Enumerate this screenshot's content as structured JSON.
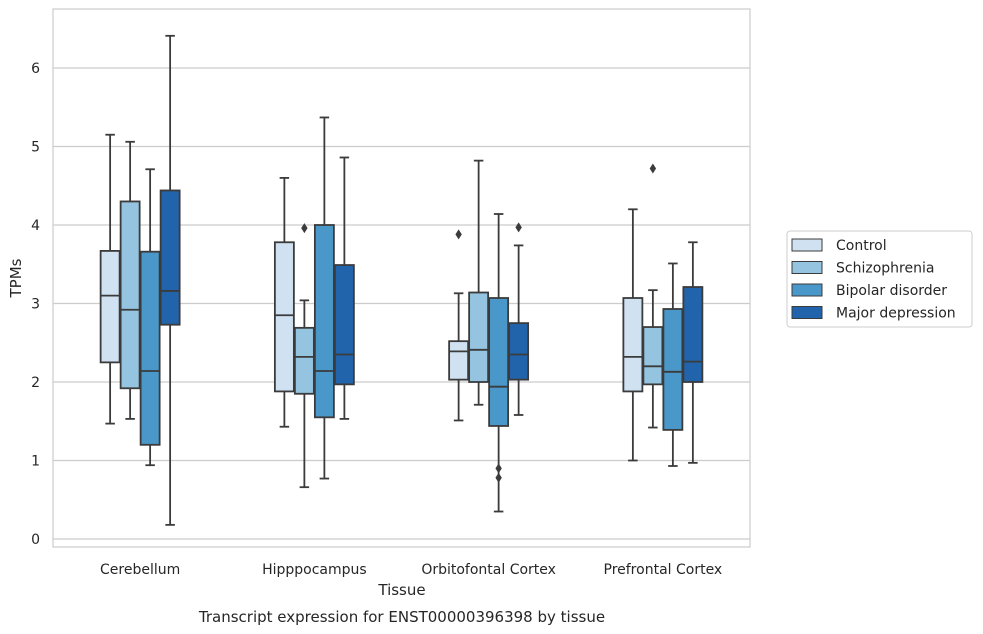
{
  "chart_data": {
    "type": "box",
    "title": "",
    "caption": "Transcript expression for ENST00000396398 by tissue",
    "xlabel": "Tissue",
    "ylabel": "TPMs",
    "ylim": [
      -0.1,
      6.75
    ],
    "yticks": [
      0,
      1,
      2,
      3,
      4,
      5,
      6
    ],
    "grid": "horizontal",
    "legend_position": "right",
    "categories": [
      "Cerebellum",
      "Hipppocampus",
      "Orbitofontal Cortex",
      "Prefrontal Cortex"
    ],
    "series": [
      {
        "name": "Control",
        "color": "#d0e1f2",
        "boxes": [
          {
            "min": 1.47,
            "q1": 2.25,
            "median": 3.1,
            "q3": 3.67,
            "max": 5.15,
            "outliers": []
          },
          {
            "min": 1.43,
            "q1": 1.88,
            "median": 2.85,
            "q3": 3.78,
            "max": 4.6,
            "outliers": []
          },
          {
            "min": 1.51,
            "q1": 2.03,
            "median": 2.39,
            "q3": 2.52,
            "max": 3.13,
            "outliers": [
              3.88
            ]
          },
          {
            "min": 1.0,
            "q1": 1.88,
            "median": 2.32,
            "q3": 3.07,
            "max": 4.2,
            "outliers": []
          }
        ]
      },
      {
        "name": "Schizophrenia",
        "color": "#94c4df",
        "boxes": [
          {
            "min": 1.53,
            "q1": 1.92,
            "median": 2.92,
            "q3": 4.3,
            "max": 5.06,
            "outliers": []
          },
          {
            "min": 0.66,
            "q1": 1.85,
            "median": 2.32,
            "q3": 2.69,
            "max": 3.04,
            "outliers": [
              3.96
            ]
          },
          {
            "min": 1.71,
            "q1": 2.0,
            "median": 2.41,
            "q3": 3.14,
            "max": 4.82,
            "outliers": []
          },
          {
            "min": 1.42,
            "q1": 1.97,
            "median": 2.2,
            "q3": 2.7,
            "max": 3.17,
            "outliers": [
              4.72
            ]
          }
        ]
      },
      {
        "name": "Bipolar disorder",
        "color": "#4a98c9",
        "boxes": [
          {
            "min": 0.94,
            "q1": 1.2,
            "median": 2.14,
            "q3": 3.66,
            "max": 4.71,
            "outliers": []
          },
          {
            "min": 0.77,
            "q1": 1.55,
            "median": 2.14,
            "q3": 4.0,
            "max": 5.37,
            "outliers": []
          },
          {
            "min": 0.35,
            "q1": 1.44,
            "median": 1.94,
            "q3": 3.07,
            "max": 4.14,
            "outliers": [
              0.9,
              0.78
            ]
          },
          {
            "min": 0.93,
            "q1": 1.39,
            "median": 2.13,
            "q3": 2.93,
            "max": 3.51,
            "outliers": []
          }
        ]
      },
      {
        "name": "Major depression",
        "color": "#2164ab",
        "boxes": [
          {
            "min": 0.18,
            "q1": 2.73,
            "median": 3.16,
            "q3": 4.44,
            "max": 6.41,
            "outliers": []
          },
          {
            "min": 1.53,
            "q1": 1.97,
            "median": 2.35,
            "q3": 3.49,
            "max": 4.86,
            "outliers": []
          },
          {
            "min": 1.58,
            "q1": 2.03,
            "median": 2.35,
            "q3": 2.75,
            "max": 3.74,
            "outliers": [
              3.97
            ]
          },
          {
            "min": 0.97,
            "q1": 2.0,
            "median": 2.26,
            "q3": 3.21,
            "max": 3.78,
            "outliers": []
          }
        ]
      }
    ]
  }
}
